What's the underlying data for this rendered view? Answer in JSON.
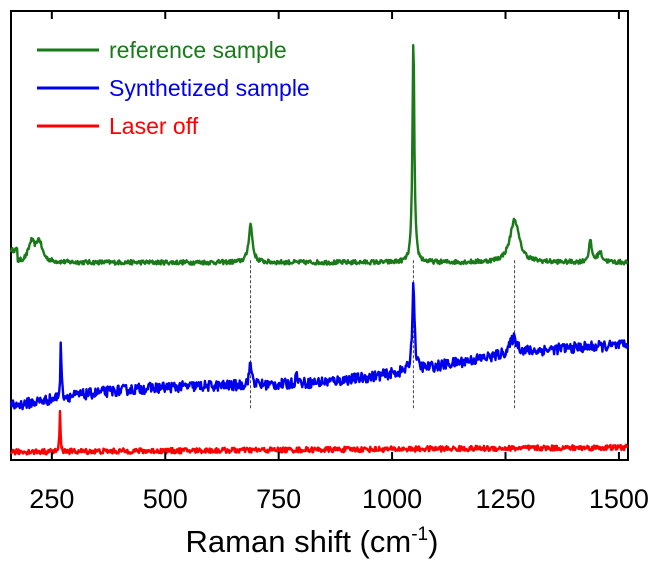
{
  "chart_data": {
    "type": "line",
    "title": "",
    "xlabel": {
      "main": "Raman shift (cm",
      "sup": "-1",
      "close": ")"
    },
    "ylabel": "",
    "xlim": [
      160,
      1520
    ],
    "ylim": [
      0,
      10
    ],
    "yticks_shown": false,
    "grid": false,
    "legend_position": "top-left",
    "x_ticks": [
      250,
      500,
      750,
      1000,
      1250,
      1500
    ],
    "x_tick_labels": [
      "250",
      "500",
      "750",
      "1000",
      "1250",
      "1500"
    ],
    "series": [
      {
        "name": "reference sample",
        "color": "#1a7a1a",
        "baseline": 4.4,
        "noise": 0.05,
        "peaks": [
          {
            "x": 205,
            "height": 0.42,
            "width": 8
          },
          {
            "x": 222,
            "height": 0.45,
            "width": 8
          },
          {
            "x": 688,
            "height": 0.85,
            "width": 5
          },
          {
            "x": 1047,
            "height": 5.0,
            "width": 2.5
          },
          {
            "x": 1270,
            "height": 0.95,
            "width": 12
          },
          {
            "x": 1437,
            "height": 0.45,
            "width": 4
          },
          {
            "x": 1458,
            "height": 0.22,
            "width": 6
          }
        ]
      },
      {
        "name": "Synthetized sample",
        "color": "#0000ee",
        "baseline_start": 1.25,
        "baseline_end": 2.55,
        "noise": 0.12,
        "peaks": [
          {
            "x": 270,
            "height": 1.25,
            "width": 1.5
          },
          {
            "x": 688,
            "height": 0.45,
            "width": 4
          },
          {
            "x": 790,
            "height": 0.22,
            "width": 3
          },
          {
            "x": 1047,
            "height": 1.95,
            "width": 3
          },
          {
            "x": 1268,
            "height": 0.35,
            "width": 10
          }
        ]
      },
      {
        "name": "Laser off",
        "color": "#ff0000",
        "baseline_start": 0.18,
        "baseline_end": 0.28,
        "noise": 0.06,
        "peaks": [
          {
            "x": 268,
            "height": 0.9,
            "width": 1.2
          }
        ]
      }
    ],
    "reference_lines": [
      688,
      1047,
      1270
    ]
  }
}
